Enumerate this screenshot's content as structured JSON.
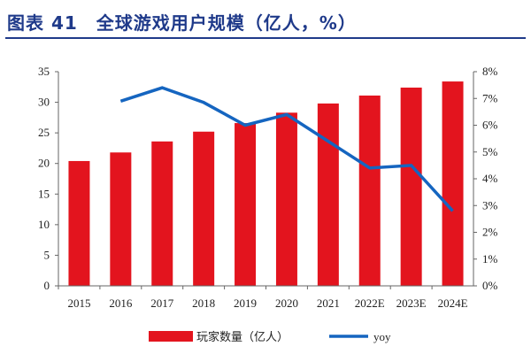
{
  "title": "图表 41　全球游戏用户规模（亿人，%）",
  "chart_data": {
    "type": "bar+line",
    "title": "图表 41　全球游戏用户规模（亿人，%）",
    "categories": [
      "2015",
      "2016",
      "2017",
      "2018",
      "2019",
      "2020",
      "2021",
      "2022E",
      "2023E",
      "2024E"
    ],
    "series": [
      {
        "name": "玩家数量（亿人）",
        "type": "bar",
        "axis": "left",
        "color": "#e3141e",
        "values": [
          20.4,
          21.8,
          23.6,
          25.2,
          26.6,
          28.3,
          29.8,
          31.1,
          32.4,
          33.4
        ]
      },
      {
        "name": "yoy",
        "type": "line",
        "axis": "right",
        "color": "#1565c0",
        "values": [
          null,
          6.9,
          7.4,
          6.85,
          6.0,
          6.4,
          5.4,
          4.4,
          4.5,
          2.8
        ]
      }
    ],
    "ylim": [
      0,
      35
    ],
    "yticks": [
      0,
      5,
      10,
      15,
      20,
      25,
      30,
      35
    ],
    "y2lim": [
      0,
      8
    ],
    "y2ticks": [
      "0%",
      "1%",
      "2%",
      "3%",
      "4%",
      "5%",
      "6%",
      "7%",
      "8%"
    ],
    "grid": false,
    "legend": "bottom"
  }
}
